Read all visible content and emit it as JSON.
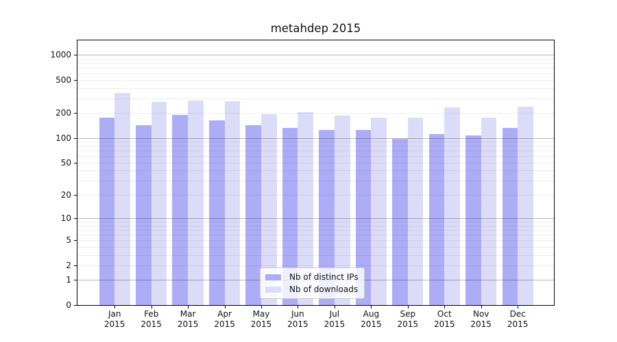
{
  "title": "metahdep 2015",
  "legend": {
    "items": [
      {
        "label": "Nb of distinct IPs",
        "series": "ips"
      },
      {
        "label": "Nb of downloads",
        "series": "downloads"
      }
    ]
  },
  "colors": {
    "ips_bar": "#adadf7",
    "downloads_bar": "#dcdcf9",
    "major_grid": "rgba(0,0,0,0.28)",
    "minor_grid": "rgba(0,0,0,0.07)",
    "axis": "#000000",
    "legend_border": "#cccccc"
  },
  "chart_data": {
    "type": "bar",
    "title": "metahdep 2015",
    "categories": [
      "Jan 2015",
      "Feb 2015",
      "Mar 2015",
      "Apr 2015",
      "May 2015",
      "Jun 2015",
      "Jul 2015",
      "Aug 2015",
      "Sep 2015",
      "Oct 2015",
      "Nov 2015",
      "Dec 2015"
    ],
    "series": [
      {
        "name": "Nb of distinct IPs",
        "color": "#adadf7",
        "values": [
          177,
          142,
          191,
          163,
          142,
          133,
          125,
          126,
          97,
          112,
          108,
          133
        ]
      },
      {
        "name": "Nb of downloads",
        "color": "#dcdcf9",
        "values": [
          348,
          270,
          284,
          277,
          192,
          205,
          185,
          175,
          175,
          232,
          177,
          240
        ]
      }
    ],
    "y_scale": "log1p",
    "y_ticks": [
      0,
      1,
      2,
      5,
      10,
      20,
      50,
      100,
      200,
      500,
      1000
    ],
    "y_major_gridlines": [
      1,
      10,
      100,
      1000
    ],
    "y_minor_gridlines": [
      2,
      3,
      4,
      5,
      6,
      7,
      8,
      9,
      20,
      30,
      40,
      50,
      60,
      70,
      80,
      90,
      200,
      300,
      400,
      500,
      600,
      700,
      800,
      900
    ],
    "ylim": [
      0,
      1450
    ],
    "grid": true,
    "legend_position": "lower center"
  }
}
